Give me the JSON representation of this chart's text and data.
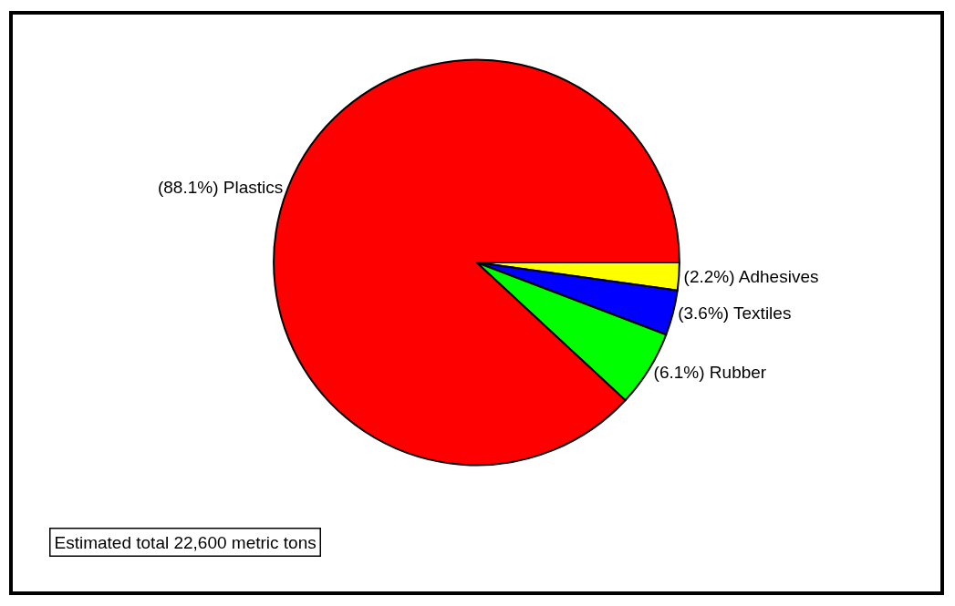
{
  "chart_data": {
    "type": "pie",
    "categories": [
      "Adhesives",
      "Textiles",
      "Rubber",
      "Plastics"
    ],
    "values": [
      2.2,
      3.6,
      6.1,
      88.1
    ],
    "value_labels": [
      "(2.2%)",
      "(3.6%)",
      "(6.1%)",
      "(88.1%)"
    ],
    "colors": [
      "#ffff00",
      "#0000ff",
      "#00ff00",
      "#ff0000"
    ],
    "legend": false,
    "annotations": [
      "Estimated total 22,600 metric tons"
    ]
  }
}
